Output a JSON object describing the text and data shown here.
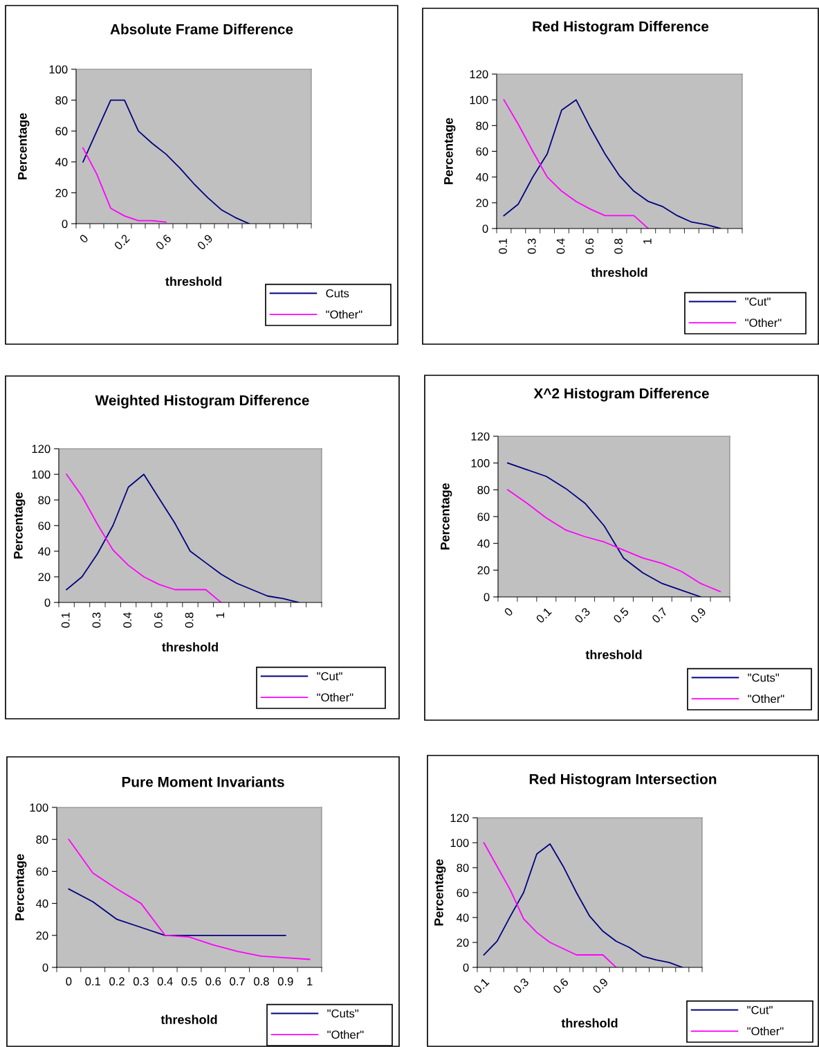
{
  "chart_data": [
    {
      "type": "line",
      "title": "Absolute Frame Difference",
      "xlabel": "threshold",
      "ylabel": "Percentage",
      "categories": [
        "0",
        null,
        null,
        "0.2",
        null,
        null,
        "0.6",
        null,
        null,
        "0.9",
        null,
        null,
        null,
        null,
        null,
        null,
        null
      ],
      "series": [
        {
          "name": "Cuts",
          "color": "#000080",
          "values": [
            40,
            60,
            80,
            80,
            60,
            52,
            45,
            36,
            26,
            17,
            9,
            4,
            0,
            null,
            null,
            null,
            null
          ]
        },
        {
          "name": "\"Other\"",
          "color": "#ff00ff",
          "values": [
            49,
            32,
            10,
            5,
            2,
            2,
            1,
            null,
            null,
            null,
            null,
            null,
            null,
            null,
            null,
            null,
            null
          ]
        }
      ],
      "ylim": [
        0,
        100
      ],
      "yticks": [
        0,
        20,
        40,
        60,
        80,
        100
      ],
      "legend": "bottom right",
      "grid": false
    },
    {
      "type": "line",
      "title": "Red Histogram Difference",
      "xlabel": "threshold",
      "ylabel": "Percentage",
      "categories": [
        "0.1",
        null,
        "0.3",
        null,
        "0.4",
        null,
        "0.6",
        null,
        "0.8",
        null,
        "1",
        null,
        null,
        null,
        null,
        null,
        null
      ],
      "series": [
        {
          "name": "\"Cut\"",
          "color": "#000080",
          "values": [
            10,
            19,
            40,
            58,
            92,
            100,
            78,
            58,
            41,
            29,
            21,
            17,
            10,
            5,
            3,
            0,
            null
          ]
        },
        {
          "name": "\"Other\"",
          "color": "#ff00ff",
          "values": [
            100,
            81,
            60,
            40,
            29,
            21,
            15,
            10,
            10,
            10,
            0,
            null,
            null,
            null,
            null,
            null,
            null
          ]
        }
      ],
      "ylim": [
        0,
        120
      ],
      "yticks": [
        0,
        20,
        40,
        60,
        80,
        100,
        120
      ],
      "legend": "bottom right",
      "grid": false
    },
    {
      "type": "line",
      "title": "Weighted Histogram Difference",
      "xlabel": "threshold",
      "ylabel": "Percentage",
      "categories": [
        "0.1",
        null,
        "0.3",
        null,
        "0.4",
        null,
        "0.6",
        null,
        "0.8",
        null,
        "1",
        null,
        null,
        null,
        null,
        null,
        null
      ],
      "series": [
        {
          "name": "\"Cut\"",
          "color": "#000080",
          "values": [
            10,
            20,
            38,
            60,
            90,
            100,
            81,
            62,
            40,
            31,
            22,
            15,
            10,
            5,
            3,
            0,
            null
          ]
        },
        {
          "name": "\"Other\"",
          "color": "#ff00ff",
          "values": [
            100,
            83,
            61,
            41,
            29,
            20,
            14,
            10,
            10,
            10,
            0,
            null,
            null,
            null,
            null,
            null,
            null
          ]
        }
      ],
      "ylim": [
        0,
        120
      ],
      "yticks": [
        0,
        20,
        40,
        60,
        80,
        100,
        120
      ],
      "legend": "bottom right",
      "grid": false
    },
    {
      "type": "line",
      "title": "X^2 Histogram Difference",
      "xlabel": "threshold",
      "ylabel": "Percentage",
      "categories": [
        "0",
        null,
        "0.1",
        null,
        "0.3",
        null,
        "0.5",
        null,
        "0.7",
        null,
        "0.9",
        null
      ],
      "series": [
        {
          "name": "\"Cuts\"",
          "color": "#000080",
          "values": [
            100,
            95,
            90,
            81,
            70,
            53,
            29,
            18,
            10,
            5,
            0,
            null
          ]
        },
        {
          "name": "\"Other\"",
          "color": "#ff00ff",
          "values": [
            80,
            70,
            59,
            50,
            45,
            41,
            35,
            29,
            25,
            19,
            10,
            4
          ]
        }
      ],
      "ylim": [
        0,
        120
      ],
      "yticks": [
        0,
        20,
        40,
        60,
        80,
        100,
        120
      ],
      "legend": "bottom right",
      "grid": false
    },
    {
      "type": "line",
      "title": "Pure Moment Invariants",
      "xlabel": "threshold",
      "ylabel": "Percentage",
      "categories": [
        "0",
        "0.1",
        "0.2",
        "0.3",
        "0.4",
        "0.5",
        "0.6",
        "0.7",
        "0.8",
        "0.9",
        "1"
      ],
      "series": [
        {
          "name": "\"Cuts\"",
          "color": "#000080",
          "values": [
            49,
            41,
            30,
            25,
            20,
            20,
            20,
            20,
            20,
            20,
            null
          ]
        },
        {
          "name": "\"Other\"",
          "color": "#ff00ff",
          "values": [
            80,
            59,
            49,
            40,
            20,
            19,
            14,
            10,
            7,
            6,
            5
          ]
        }
      ],
      "ylim": [
        0,
        100
      ],
      "yticks": [
        0,
        20,
        40,
        60,
        80,
        100
      ],
      "legend": "bottom right",
      "grid": false
    },
    {
      "type": "line",
      "title": "Red Histogram Intersection",
      "xlabel": "threshold",
      "ylabel": "Percentage",
      "categories": [
        "0.1",
        null,
        null,
        "0.3",
        null,
        null,
        "0.6",
        null,
        null,
        "0.9",
        null,
        null,
        null,
        null,
        null,
        null,
        null
      ],
      "series": [
        {
          "name": "\"Cut\"",
          "color": "#000080",
          "values": [
            10,
            21,
            41,
            60,
            91,
            99,
            81,
            60,
            41,
            29,
            21,
            16,
            9,
            6,
            4,
            0,
            null
          ]
        },
        {
          "name": "\"Other\"",
          "color": "#ff00ff",
          "values": [
            100,
            81,
            62,
            39,
            28,
            20,
            15,
            10,
            10,
            10,
            0,
            null,
            null,
            null,
            null,
            null,
            null
          ]
        }
      ],
      "ylim": [
        0,
        120
      ],
      "yticks": [
        0,
        20,
        40,
        60,
        80,
        100,
        120
      ],
      "legend": "bottom right",
      "grid": false
    }
  ]
}
